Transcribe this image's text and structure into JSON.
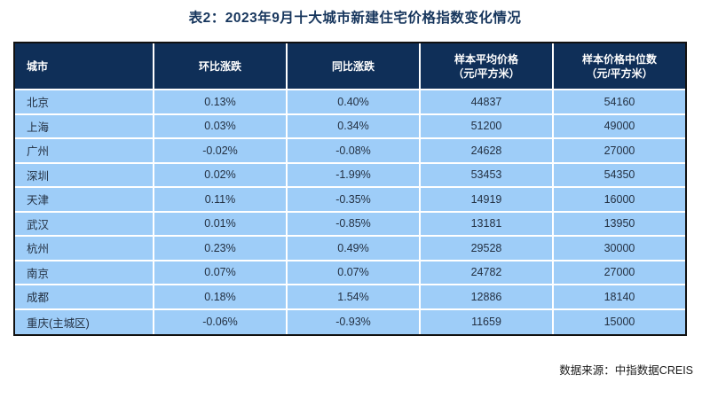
{
  "page": {
    "title": "表2：2023年9月十大城市新建住宅价格指数变化情况",
    "source_note": "数据来源：中指数据CREIS"
  },
  "colors": {
    "header_bg": "#0f2f58",
    "row_bg": "#9ecdf8",
    "title_text": "#17365d",
    "header_text": "#ffffff",
    "body_text": "#233042",
    "table_border": "#111111",
    "cell_gap": "#ffffff"
  },
  "table": {
    "columns": [
      {
        "line1": "城市",
        "line2": ""
      },
      {
        "line1": "环比涨跌",
        "line2": ""
      },
      {
        "line1": "同比涨跌",
        "line2": ""
      },
      {
        "line1": "样本平均价格",
        "line2": "（元/平方米）"
      },
      {
        "line1": "样本价格中位数",
        "line2": "（元/平方米）"
      }
    ],
    "rows": [
      {
        "city": "北京",
        "mom": "0.13%",
        "yoy": "0.40%",
        "avg_price": "44837",
        "median_price": "54160"
      },
      {
        "city": "上海",
        "mom": "0.03%",
        "yoy": "0.34%",
        "avg_price": "51200",
        "median_price": "49000"
      },
      {
        "city": "广州",
        "mom": "-0.02%",
        "yoy": "-0.08%",
        "avg_price": "24628",
        "median_price": "27000"
      },
      {
        "city": "深圳",
        "mom": "0.02%",
        "yoy": "-1.99%",
        "avg_price": "53453",
        "median_price": "54350"
      },
      {
        "city": "天津",
        "mom": "0.11%",
        "yoy": "-0.35%",
        "avg_price": "14919",
        "median_price": "16000"
      },
      {
        "city": "武汉",
        "mom": "0.01%",
        "yoy": "-0.85%",
        "avg_price": "13181",
        "median_price": "13950"
      },
      {
        "city": "杭州",
        "mom": "0.23%",
        "yoy": "0.49%",
        "avg_price": "29528",
        "median_price": "30000"
      },
      {
        "city": "南京",
        "mom": "0.07%",
        "yoy": "0.07%",
        "avg_price": "24782",
        "median_price": "27000"
      },
      {
        "city": "成都",
        "mom": "0.18%",
        "yoy": "1.54%",
        "avg_price": "12886",
        "median_price": "18140"
      },
      {
        "city": "重庆(主城区)",
        "mom": "-0.06%",
        "yoy": "-0.93%",
        "avg_price": "11659",
        "median_price": "15000"
      }
    ]
  },
  "chart_data": {
    "type": "table",
    "title": "表2：2023年9月十大城市新建住宅价格指数变化情况",
    "columns": [
      "城市",
      "环比涨跌",
      "同比涨跌",
      "样本平均价格（元/平方米）",
      "样本价格中位数（元/平方米）"
    ],
    "rows": [
      [
        "北京",
        "0.13%",
        "0.40%",
        44837,
        54160
      ],
      [
        "上海",
        "0.03%",
        "0.34%",
        51200,
        49000
      ],
      [
        "广州",
        "-0.02%",
        "-0.08%",
        24628,
        27000
      ],
      [
        "深圳",
        "0.02%",
        "-1.99%",
        53453,
        54350
      ],
      [
        "天津",
        "0.11%",
        "-0.35%",
        14919,
        16000
      ],
      [
        "武汉",
        "0.01%",
        "-0.85%",
        13181,
        13950
      ],
      [
        "杭州",
        "0.23%",
        "0.49%",
        29528,
        30000
      ],
      [
        "南京",
        "0.07%",
        "0.07%",
        24782,
        27000
      ],
      [
        "成都",
        "0.18%",
        "1.54%",
        12886,
        18140
      ],
      [
        "重庆(主城区)",
        "-0.06%",
        "-0.93%",
        11659,
        15000
      ]
    ],
    "source": "数据来源：中指数据CREIS",
    "layout_hints": {
      "header_style": "dark-navy background, white bold text",
      "body_style": "light-blue rows, dark text, white cell gaps",
      "first_column_align": "left",
      "other_columns_align": "center"
    }
  }
}
